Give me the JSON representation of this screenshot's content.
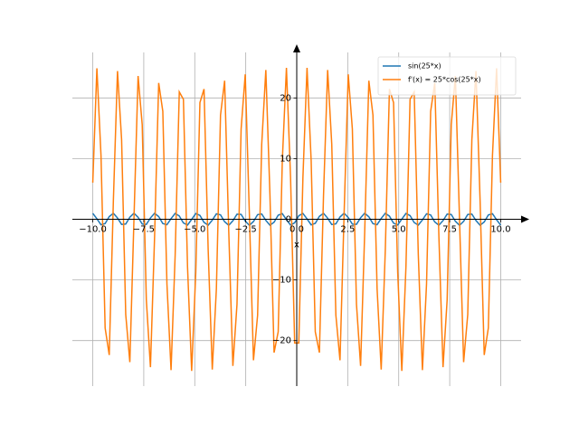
{
  "chart_data": {
    "type": "line",
    "xlabel": "x",
    "xlim": [
      -11,
      11
    ],
    "ylim": [
      -27.5,
      27.5
    ],
    "xticks": [
      {
        "value": -10,
        "label": "−10.0"
      },
      {
        "value": -7.5,
        "label": "−7.5"
      },
      {
        "value": -5,
        "label": "−5.0"
      },
      {
        "value": -2.5,
        "label": "−2.5"
      },
      {
        "value": 0,
        "label": "0.0"
      },
      {
        "value": 2.5,
        "label": "2.5"
      },
      {
        "value": 5,
        "label": "5.0"
      },
      {
        "value": 7.5,
        "label": "7.5"
      },
      {
        "value": 10,
        "label": "10.0"
      }
    ],
    "yticks": [
      {
        "value": -20,
        "label": "−20"
      },
      {
        "value": -10,
        "label": "−10"
      },
      0,
      10,
      20
    ],
    "grid": true,
    "legend": "upper right",
    "x": [
      -10,
      -9.798,
      -9.596,
      -9.394,
      -9.192,
      -8.99,
      -8.788,
      -8.586,
      -8.384,
      -8.182,
      -7.98,
      -7.778,
      -7.576,
      -7.374,
      -7.172,
      -6.97,
      -6.768,
      -6.566,
      -6.364,
      -6.162,
      -5.96,
      -5.758,
      -5.556,
      -5.354,
      -5.152,
      -4.949,
      -4.747,
      -4.545,
      -4.343,
      -4.141,
      -3.939,
      -3.737,
      -3.535,
      -3.333,
      -3.131,
      -2.929,
      -2.727,
      -2.525,
      -2.323,
      -2.121,
      -1.919,
      -1.717,
      -1.515,
      -1.313,
      -1.111,
      -0.909,
      -0.707,
      -0.505,
      -0.303,
      -0.101,
      0.101,
      0.303,
      0.505,
      0.707,
      0.909,
      1.111,
      1.313,
      1.515,
      1.717,
      1.919,
      2.121,
      2.323,
      2.525,
      2.727,
      2.929,
      3.131,
      3.333,
      3.535,
      3.737,
      3.939,
      4.141,
      4.343,
      4.545,
      4.747,
      4.949,
      5.152,
      5.354,
      5.556,
      5.758,
      5.96,
      6.162,
      6.364,
      6.566,
      6.768,
      6.97,
      7.172,
      7.374,
      7.576,
      7.778,
      7.98,
      8.182,
      8.384,
      8.586,
      8.788,
      8.99,
      9.192,
      9.394,
      9.596,
      9.798,
      10
    ],
    "series": [
      {
        "name": "sin(25*x)",
        "color": "#1f77b4",
        "values": [
          0.97,
          0.09,
          -0.91,
          -0.7,
          0.45,
          0.99,
          0.21,
          -0.85,
          -0.78,
          0.34,
          1.0,
          0.33,
          -0.78,
          -0.85,
          0.22,
          0.99,
          0.44,
          -0.7,
          -0.9,
          0.1,
          0.97,
          0.54,
          -0.61,
          -0.95,
          -0.02,
          0.94,
          0.64,
          -0.51,
          -0.98,
          -0.14,
          0.89,
          0.73,
          -0.41,
          -1.0,
          -0.25,
          0.83,
          0.8,
          -0.29,
          -1.0,
          -0.37,
          0.76,
          0.87,
          -0.18,
          -0.99,
          -0.48,
          0.67,
          0.92,
          -0.06,
          -0.96,
          -0.58,
          0.58,
          0.96,
          0.06,
          -0.92,
          -0.67,
          0.48,
          0.99,
          0.18,
          -0.87,
          -0.76,
          0.37,
          1.0,
          0.29,
          -0.8,
          -0.83,
          0.25,
          1.0,
          0.41,
          -0.73,
          -0.89,
          0.14,
          0.98,
          0.51,
          -0.64,
          -0.94,
          0.02,
          0.95,
          0.61,
          -0.54,
          -0.97,
          -0.1,
          0.9,
          0.7,
          -0.44,
          -0.99,
          -0.22,
          0.85,
          0.78,
          -0.33,
          -1.0,
          -0.34,
          0.78,
          0.85,
          -0.21,
          -0.99,
          -0.45,
          0.7,
          0.91,
          -0.09,
          -0.97
        ]
      },
      {
        "name": "f'(x) = 25*cos(25*x)",
        "color": "#ff7f0e",
        "values": [
          6.03,
          24.89,
          10.49,
          -17.93,
          -22.38,
          3.08,
          24.43,
          13.12,
          -15.72,
          -23.55,
          0.1,
          23.62,
          15.57,
          -13.29,
          -24.39,
          -2.89,
          22.47,
          17.8,
          -10.66,
          -24.87,
          -5.84,
          21.0,
          19.77,
          -7.88,
          -25.0,
          -8.7,
          19.22,
          21.46,
          -4.99,
          -24.77,
          -11.44,
          17.17,
          22.84,
          -2.03,
          -24.18,
          -14.02,
          14.88,
          23.89,
          0.97,
          -23.25,
          -15.82,
          12.37,
          24.6,
          3.95,
          -21.98,
          -18.55,
          9.69,
          24.96,
          6.87,
          -20.4,
          -20.4,
          6.87,
          24.96,
          9.69,
          -18.55,
          -21.98,
          3.95,
          24.6,
          12.37,
          -15.82,
          -23.25,
          0.97,
          23.89,
          14.88,
          -14.02,
          -24.18,
          -2.03,
          22.84,
          17.17,
          -11.44,
          -24.77,
          -4.99,
          21.46,
          19.22,
          -8.7,
          -25.0,
          -7.88,
          19.77,
          21.0,
          -5.84,
          -24.87,
          -10.66,
          17.8,
          22.47,
          -2.89,
          -24.39,
          -13.29,
          15.57,
          23.62,
          0.1,
          -23.55,
          -15.72,
          13.12,
          24.43,
          3.08,
          -22.38,
          -17.93,
          10.49,
          24.89,
          6.03
        ]
      }
    ]
  }
}
